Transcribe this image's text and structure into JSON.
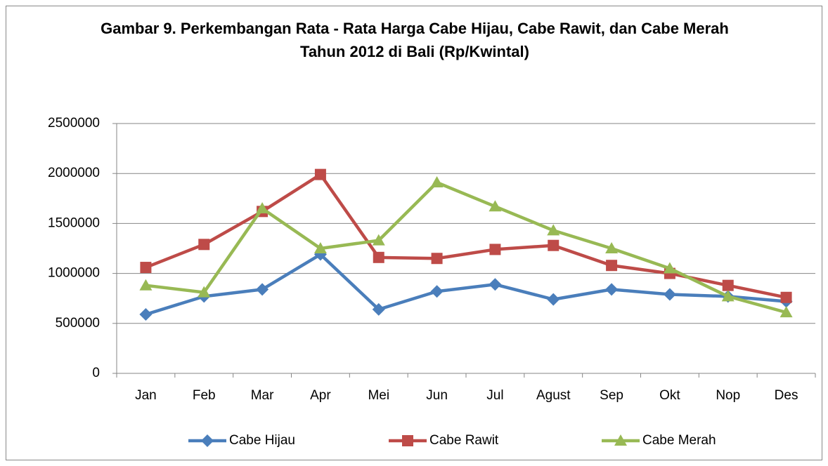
{
  "chart_data": {
    "type": "line",
    "title": "Gambar 9. Perkembangan Rata - Rata Harga Cabe Hijau, Cabe Rawit, dan Cabe Merah Tahun 2012 di Bali (Rp/Kwintal)",
    "categories": [
      "Jan",
      "Feb",
      "Mar",
      "Apr",
      "Mei",
      "Jun",
      "Jul",
      "Agust",
      "Sep",
      "Okt",
      "Nop",
      "Des"
    ],
    "series": [
      {
        "name": "Cabe Hijau",
        "color": "#4a7ebb",
        "marker": "diamond",
        "values": [
          590000,
          770000,
          840000,
          1190000,
          640000,
          820000,
          890000,
          740000,
          840000,
          790000,
          770000,
          720000
        ]
      },
      {
        "name": "Cabe Rawit",
        "color": "#be4b48",
        "marker": "square",
        "values": [
          1060000,
          1290000,
          1620000,
          1990000,
          1160000,
          1150000,
          1240000,
          1280000,
          1080000,
          1000000,
          880000,
          760000
        ]
      },
      {
        "name": "Cabe Merah",
        "color": "#98b954",
        "marker": "triangle",
        "values": [
          880000,
          810000,
          1650000,
          1250000,
          1330000,
          1910000,
          1670000,
          1430000,
          1250000,
          1050000,
          770000,
          610000
        ]
      }
    ],
    "ylim": [
      0,
      2500000
    ],
    "yticks": [
      0,
      500000,
      1000000,
      1500000,
      2000000,
      2500000
    ],
    "grid": true,
    "legend": "bottom"
  }
}
